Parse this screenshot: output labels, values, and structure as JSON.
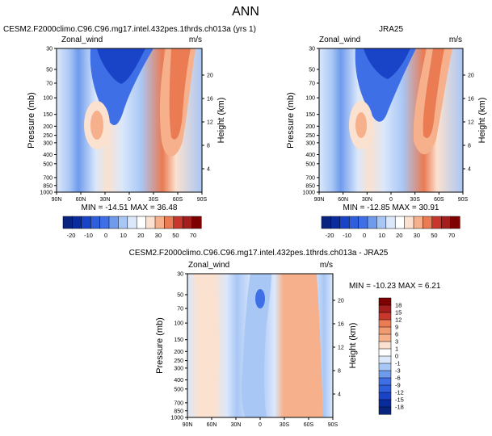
{
  "page_title": "ANN",
  "colors": {
    "deep_blue": "#0a2b9c",
    "mid_blue": "#3f6fe6",
    "light_blue": "#a9c7f5",
    "pale_blue": "#dbe8fb",
    "neutral": "#ffffff",
    "pale_orange": "#fbe1cf",
    "light_orange": "#f6b08c",
    "orange": "#ea7b52",
    "red": "#c8372b",
    "dark_red": "#7f0000"
  },
  "chart_data": [
    {
      "type": "heatmap",
      "id": "model",
      "title": "CESM2.F2000climo.C96.C96.mg17.intel.432pes.1thrds.ch013a (yrs 1)",
      "variable_label": "Zonal_wind",
      "units_label": "m/s",
      "ylabel": "Pressure (mb)",
      "y2label": "Height (km)",
      "xlabel": "",
      "x_ticks": [
        "90N",
        "60N",
        "30N",
        "0",
        "30S",
        "60S",
        "90S"
      ],
      "y_ticks": [
        "30",
        "50",
        "70",
        "100",
        "150",
        "200",
        "250",
        "300",
        "400",
        "500",
        "700",
        "850",
        "1000"
      ],
      "y2_ticks": [
        "20",
        "16",
        "12",
        "8",
        "4"
      ],
      "xlim": [
        90,
        -90
      ],
      "ylim": [
        1000,
        30
      ],
      "log_y": true,
      "stats": "MIN = -14.51   MAX =  36.48",
      "min": -14.51,
      "max": 36.48,
      "colorbar_labels": [
        "-20",
        "-10",
        "0",
        "10",
        "20",
        "30",
        "50",
        "70"
      ],
      "features": [
        {
          "lat": -60,
          "pressure": 180,
          "value": 30
        },
        {
          "lat": 32,
          "pressure": 200,
          "value": 20
        },
        {
          "lat": 5,
          "pressure": 40,
          "value": -14
        }
      ]
    },
    {
      "type": "heatmap",
      "id": "obs",
      "title": "JRA25",
      "variable_label": "Zonal_wind",
      "units_label": "m/s",
      "ylabel": "Pressure (mb)",
      "y2label": "Height (km)",
      "xlabel": "",
      "x_ticks": [
        "90N",
        "60N",
        "30N",
        "0",
        "30S",
        "60S",
        "90S"
      ],
      "y_ticks": [
        "30",
        "50",
        "70",
        "100",
        "150",
        "200",
        "250",
        "300",
        "400",
        "500",
        "700",
        "850",
        "1000"
      ],
      "y2_ticks": [
        "20",
        "16",
        "12",
        "8",
        "4"
      ],
      "xlim": [
        90,
        -90
      ],
      "ylim": [
        1000,
        30
      ],
      "log_y": true,
      "stats": "MIN = -12.85   MAX =  30.91",
      "min": -12.85,
      "max": 30.91,
      "colorbar_labels": [
        "-20",
        "-10",
        "0",
        "10",
        "20",
        "30",
        "50",
        "70"
      ],
      "features": [
        {
          "lat": -60,
          "pressure": 200,
          "value": 28
        },
        {
          "lat": 32,
          "pressure": 200,
          "value": 20
        },
        {
          "lat": 5,
          "pressure": 40,
          "value": -12
        }
      ]
    },
    {
      "type": "heatmap",
      "id": "diff",
      "title": "CESM2.F2000climo.C96.C96.mg17.intel.432pes.1thrds.ch013a - JRA25",
      "variable_label": "Zonal_wind",
      "units_label": "m/s",
      "ylabel": "Pressure (mb)",
      "y2label": "Height (km)",
      "xlabel": "",
      "x_ticks": [
        "90N",
        "60N",
        "30N",
        "0",
        "30S",
        "60S",
        "90S"
      ],
      "y_ticks": [
        "30",
        "50",
        "70",
        "100",
        "150",
        "200",
        "250",
        "300",
        "400",
        "500",
        "700",
        "850",
        "1000"
      ],
      "y2_ticks": [
        "20",
        "16",
        "12",
        "8",
        "4"
      ],
      "xlim": [
        90,
        -90
      ],
      "ylim": [
        1000,
        30
      ],
      "log_y": true,
      "stats": "MIN = -10.23   MAX =   6.21",
      "min": -10.23,
      "max": 6.21,
      "colorbar_labels": [
        "18",
        "15",
        "12",
        "9",
        "6",
        "3",
        "1",
        "0",
        "-1",
        "-3",
        "-6",
        "-9",
        "-12",
        "-15",
        "-18"
      ],
      "features": [
        {
          "lat": -45,
          "pressure": 60,
          "value": 5
        },
        {
          "lat": 0,
          "pressure": 60,
          "value": -9
        }
      ]
    }
  ]
}
